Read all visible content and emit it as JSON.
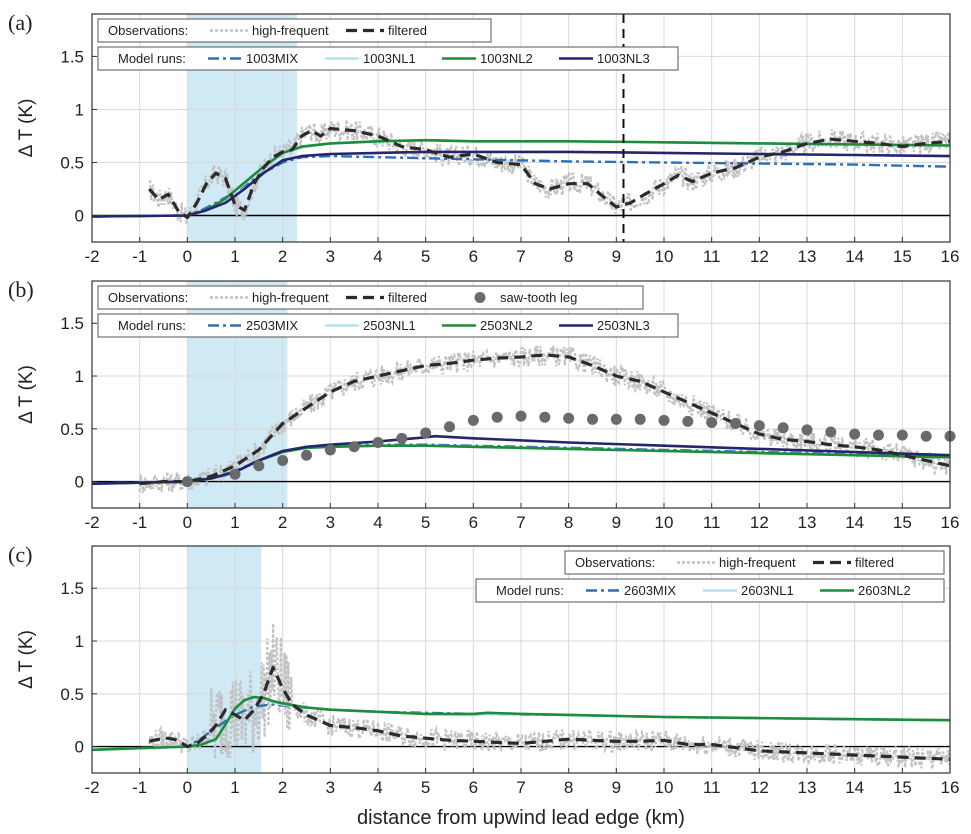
{
  "figure": {
    "xlabel": "distance from upwind lead edge (km)"
  },
  "colors": {
    "high_frequent": "#c2c2c2",
    "filtered": "#2b2b2b",
    "mix": "#2f6fb6",
    "nl1": "#b6e1ef",
    "nl2": "#1e8c3a",
    "nl3": "#25256e",
    "sawtooth": "#6a6a6a",
    "lead_shading": "#bfe1f1"
  },
  "chart_data": [
    {
      "type": "line",
      "panel_label": "(a)",
      "ylabel": "Δ T (K)",
      "xlim": [
        -2,
        16
      ],
      "ylim": [
        -0.25,
        1.9
      ],
      "xticks": [
        "-2",
        "-1",
        "0",
        "1",
        "2",
        "3",
        "4",
        "5",
        "6",
        "7",
        "8",
        "9",
        "10",
        "11",
        "12",
        "13",
        "14",
        "15",
        "16"
      ],
      "yticks": [
        "0",
        "0.5",
        "1",
        "1.5"
      ],
      "grid": true,
      "lead_shading_km": [
        0,
        2.3
      ],
      "vertical_marker_km": 9.15,
      "legend": {
        "observations_label": "Observations:",
        "observations": [
          "high-frequent",
          "filtered"
        ],
        "model_label": "Model runs:",
        "models": [
          "1003MIX",
          "1003NL1",
          "1003NL2",
          "1003NL3"
        ]
      },
      "series": [
        {
          "name": "filtered",
          "x": [
            -0.8,
            -0.6,
            -0.4,
            -0.2,
            0,
            0.2,
            0.4,
            0.6,
            0.8,
            1,
            1.2,
            1.4,
            1.6,
            1.8,
            2,
            2.2,
            2.4,
            2.6,
            2.8,
            3,
            3.5,
            4,
            4.5,
            5,
            5.5,
            6,
            6.5,
            7,
            7.3,
            7.6,
            8,
            8.4,
            8.8,
            9,
            9.3,
            9.6,
            10,
            10.3,
            10.6,
            11,
            11.5,
            12,
            12.5,
            13,
            13.5,
            14,
            14.5,
            15,
            15.5,
            16
          ],
          "y": [
            0.25,
            0.15,
            0.2,
            0.05,
            -0.02,
            0.12,
            0.3,
            0.4,
            0.35,
            0.1,
            0.05,
            0.3,
            0.45,
            0.55,
            0.6,
            0.62,
            0.75,
            0.8,
            0.75,
            0.82,
            0.8,
            0.75,
            0.65,
            0.62,
            0.55,
            0.58,
            0.5,
            0.48,
            0.3,
            0.25,
            0.3,
            0.3,
            0.15,
            0.08,
            0.12,
            0.2,
            0.3,
            0.38,
            0.32,
            0.4,
            0.45,
            0.55,
            0.6,
            0.68,
            0.72,
            0.7,
            0.68,
            0.65,
            0.68,
            0.7
          ]
        },
        {
          "name": "1003MIX",
          "x": [
            -2,
            0,
            0.3,
            0.6,
            1,
            1.5,
            2,
            2.4,
            3,
            4,
            6,
            8,
            10,
            12,
            14,
            16
          ],
          "y": [
            -0.01,
            0,
            0.05,
            0.12,
            0.22,
            0.38,
            0.5,
            0.55,
            0.56,
            0.55,
            0.53,
            0.51,
            0.5,
            0.49,
            0.48,
            0.46
          ]
        },
        {
          "name": "1003NL1",
          "x": [
            -2,
            0,
            0.4,
            0.8,
            1.2,
            1.6,
            2,
            2.4,
            3,
            4,
            5,
            6,
            8,
            10,
            12,
            14,
            16
          ],
          "y": [
            -0.01,
            0,
            0.05,
            0.15,
            0.3,
            0.45,
            0.58,
            0.64,
            0.68,
            0.7,
            0.71,
            0.7,
            0.7,
            0.69,
            0.68,
            0.67,
            0.66
          ]
        },
        {
          "name": "1003NL2",
          "x": [
            -2,
            0,
            0.4,
            0.8,
            1.2,
            1.6,
            2,
            2.4,
            3,
            4,
            5,
            6,
            8,
            10,
            12,
            14,
            16
          ],
          "y": [
            -0.01,
            0,
            0.05,
            0.16,
            0.31,
            0.46,
            0.59,
            0.65,
            0.68,
            0.7,
            0.71,
            0.7,
            0.7,
            0.69,
            0.68,
            0.67,
            0.66
          ]
        },
        {
          "name": "1003NL3",
          "x": [
            -2,
            0,
            0.4,
            0.8,
            1.2,
            1.6,
            2,
            2.4,
            3,
            4,
            5,
            6,
            8,
            10,
            12,
            14,
            16
          ],
          "y": [
            -0.01,
            0,
            0.05,
            0.12,
            0.25,
            0.4,
            0.52,
            0.56,
            0.58,
            0.59,
            0.6,
            0.6,
            0.6,
            0.59,
            0.58,
            0.57,
            0.56
          ]
        }
      ]
    },
    {
      "type": "line",
      "panel_label": "(b)",
      "ylabel": "Δ T (K)",
      "xlim": [
        -2,
        16
      ],
      "ylim": [
        -0.25,
        1.9
      ],
      "xticks": [
        "-2",
        "-1",
        "0",
        "1",
        "2",
        "3",
        "4",
        "5",
        "6",
        "7",
        "8",
        "9",
        "10",
        "11",
        "12",
        "13",
        "14",
        "15",
        "16"
      ],
      "yticks": [
        "0",
        "0.5",
        "1",
        "1.5"
      ],
      "grid": true,
      "lead_shading_km": [
        0,
        2.1
      ],
      "legend": {
        "observations_label": "Observations:",
        "observations": [
          "high-frequent",
          "filtered",
          "saw-tooth leg"
        ],
        "model_label": "Model runs:",
        "models": [
          "2503MIX",
          "2503NL1",
          "2503NL2",
          "2503NL3"
        ]
      },
      "series": [
        {
          "name": "filtered",
          "x": [
            -1,
            -0.5,
            0,
            0.5,
            1,
            1.5,
            2,
            2.5,
            3,
            3.5,
            4,
            4.5,
            5,
            5.5,
            6,
            6.5,
            7,
            7.5,
            8,
            8.5,
            9,
            9.5,
            10,
            10.5,
            11,
            11.5,
            12,
            12.5,
            13,
            13.5,
            14,
            14.5,
            15,
            15.5,
            16
          ],
          "y": [
            -0.02,
            0,
            0,
            0.05,
            0.15,
            0.3,
            0.55,
            0.7,
            0.85,
            0.95,
            1.0,
            1.05,
            1.1,
            1.12,
            1.15,
            1.17,
            1.18,
            1.2,
            1.18,
            1.1,
            1.0,
            0.95,
            0.85,
            0.75,
            0.65,
            0.55,
            0.45,
            0.4,
            0.38,
            0.35,
            0.33,
            0.3,
            0.25,
            0.2,
            0.15
          ]
        },
        {
          "name": "2503MIX",
          "x": [
            -2,
            0,
            0.5,
            1,
            1.5,
            2,
            2.5,
            3,
            4,
            5,
            6,
            8,
            10,
            12,
            14,
            16
          ],
          "y": [
            -0.02,
            0,
            0.03,
            0.1,
            0.2,
            0.28,
            0.32,
            0.34,
            0.35,
            0.35,
            0.34,
            0.32,
            0.3,
            0.28,
            0.26,
            0.24
          ]
        },
        {
          "name": "2503NL1",
          "x": [
            -2,
            0,
            0.5,
            1,
            1.5,
            2,
            2.5,
            3,
            4,
            5,
            6,
            8,
            10,
            12,
            14,
            16
          ],
          "y": [
            -0.02,
            0,
            0.03,
            0.09,
            0.2,
            0.28,
            0.32,
            0.33,
            0.34,
            0.34,
            0.33,
            0.31,
            0.29,
            0.27,
            0.25,
            0.23
          ]
        },
        {
          "name": "2503NL2",
          "x": [
            -2,
            0,
            0.5,
            1,
            1.5,
            2,
            2.5,
            3,
            4,
            5,
            6,
            8,
            10,
            12,
            14,
            16
          ],
          "y": [
            -0.02,
            0,
            0.03,
            0.09,
            0.2,
            0.28,
            0.32,
            0.33,
            0.34,
            0.34,
            0.33,
            0.31,
            0.29,
            0.27,
            0.25,
            0.23
          ]
        },
        {
          "name": "2503NL3",
          "x": [
            -2,
            0,
            0.5,
            1,
            1.5,
            2,
            2.5,
            3,
            4,
            5,
            5.2,
            6,
            8,
            10,
            12,
            14,
            16
          ],
          "y": [
            -0.02,
            0,
            0.03,
            0.09,
            0.2,
            0.29,
            0.33,
            0.35,
            0.38,
            0.42,
            0.43,
            0.41,
            0.37,
            0.34,
            0.31,
            0.28,
            0.25
          ]
        },
        {
          "name": "saw-tooth leg",
          "x": [
            0,
            1,
            1.5,
            2,
            2.5,
            3,
            3.5,
            4,
            4.5,
            5,
            5.5,
            6,
            6.5,
            7,
            7.5,
            8,
            8.5,
            9,
            9.5,
            10,
            10.5,
            11,
            11.5,
            12,
            12.5,
            13,
            13.5,
            14,
            14.5,
            15,
            15.5,
            16
          ],
          "y": [
            0,
            0.07,
            0.15,
            0.2,
            0.25,
            0.3,
            0.33,
            0.37,
            0.41,
            0.46,
            0.52,
            0.58,
            0.61,
            0.62,
            0.61,
            0.6,
            0.59,
            0.59,
            0.59,
            0.58,
            0.57,
            0.56,
            0.55,
            0.53,
            0.51,
            0.49,
            0.47,
            0.45,
            0.44,
            0.44,
            0.43,
            0.43
          ]
        }
      ]
    },
    {
      "type": "line",
      "panel_label": "(c)",
      "ylabel": "Δ T (K)",
      "xlim": [
        -2,
        16
      ],
      "ylim": [
        -0.25,
        1.9
      ],
      "xticks": [
        "-2",
        "-1",
        "0",
        "1",
        "2",
        "3",
        "4",
        "5",
        "6",
        "7",
        "8",
        "9",
        "10",
        "11",
        "12",
        "13",
        "14",
        "15",
        "16"
      ],
      "yticks": [
        "0",
        "0.5",
        "1",
        "1.5"
      ],
      "grid": true,
      "lead_shading_km": [
        0,
        1.55
      ],
      "legend": {
        "observations_label": "Observations:",
        "observations": [
          "high-frequent",
          "filtered"
        ],
        "model_label": "Model runs:",
        "models": [
          "2603MIX",
          "2603NL1",
          "2603NL2"
        ]
      },
      "series": [
        {
          "name": "filtered",
          "x": [
            -0.8,
            -0.6,
            -0.4,
            -0.2,
            0,
            0.2,
            0.4,
            0.6,
            0.8,
            1,
            1.2,
            1.4,
            1.6,
            1.8,
            2,
            2.2,
            2.5,
            3,
            3.5,
            4,
            4.5,
            5,
            5.5,
            6,
            6.5,
            7,
            7.5,
            8,
            8.5,
            9,
            9.5,
            10,
            10.5,
            11,
            11.5,
            12,
            12.5,
            13,
            13.5,
            14,
            14.5,
            15,
            15.5,
            16
          ],
          "y": [
            0.05,
            0.07,
            0.08,
            0.06,
            0,
            0.03,
            0.1,
            0.2,
            0.35,
            0.3,
            0.25,
            0.35,
            0.5,
            0.75,
            0.55,
            0.4,
            0.3,
            0.2,
            0.18,
            0.15,
            0.1,
            0.08,
            0.06,
            0.05,
            0.04,
            0.03,
            0.05,
            0.07,
            0.06,
            0.05,
            0.05,
            0.06,
            0.02,
            0.02,
            -0.01,
            -0.04,
            -0.05,
            -0.06,
            -0.07,
            -0.08,
            -0.09,
            -0.1,
            -0.11,
            -0.12
          ]
        },
        {
          "name": "2603MIX",
          "x": [
            -2,
            0,
            0.3,
            0.6,
            1,
            1.4,
            1.8,
            2.2,
            3,
            4,
            5,
            6,
            8,
            10,
            12,
            14,
            16
          ],
          "y": [
            -0.03,
            0,
            0.08,
            0.18,
            0.3,
            0.38,
            0.4,
            0.38,
            0.35,
            0.33,
            0.32,
            0.31,
            0.3,
            0.28,
            0.27,
            0.26,
            0.25
          ]
        },
        {
          "name": "2603NL1",
          "x": [
            -2,
            0,
            0.3,
            0.6,
            0.8,
            1,
            1.2,
            1.4,
            1.6,
            1.8,
            2,
            2.5,
            3,
            4,
            5,
            6,
            6.3,
            7,
            8,
            10,
            12,
            14,
            16
          ],
          "y": [
            -0.03,
            0,
            0.02,
            0.07,
            0.2,
            0.35,
            0.43,
            0.46,
            0.45,
            0.42,
            0.4,
            0.37,
            0.35,
            0.33,
            0.31,
            0.3,
            0.31,
            0.31,
            0.3,
            0.28,
            0.27,
            0.26,
            0.25
          ]
        },
        {
          "name": "2603NL2",
          "x": [
            -2,
            0,
            0.3,
            0.6,
            0.8,
            1,
            1.2,
            1.4,
            1.6,
            1.8,
            2,
            2.5,
            3,
            4,
            5,
            6,
            6.3,
            7,
            8,
            10,
            12,
            14,
            16
          ],
          "y": [
            -0.03,
            0,
            0.02,
            0.07,
            0.21,
            0.36,
            0.44,
            0.47,
            0.46,
            0.43,
            0.41,
            0.37,
            0.35,
            0.33,
            0.31,
            0.31,
            0.32,
            0.31,
            0.3,
            0.28,
            0.27,
            0.26,
            0.25
          ]
        }
      ]
    }
  ]
}
